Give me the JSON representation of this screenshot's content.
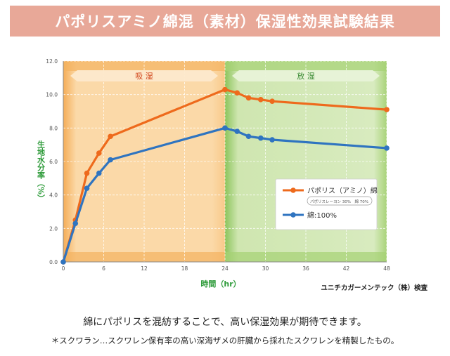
{
  "banner": {
    "title": "パポリスアミノ綿混（素材）保湿性効果試験結果"
  },
  "credit": "ユニチカガーメンテック（株）検査",
  "caption": "綿にパポリスを混紡することで、高い保湿効果が期待できます。",
  "footnote": "＊スクワラン…スクワレン保有率の高い深海ザメの肝臓から採れたスクワレンを精製したもの。",
  "colors": {
    "absorb_zone": "#f8c98a",
    "release_zone": "#a9d37a",
    "series_orange": "#ee6a1c",
    "series_blue": "#2f74c0",
    "axis_label_green": "#2e9b3a"
  },
  "chart_data": {
    "type": "line",
    "xlabel": "時間（hr）",
    "ylabel": "生地水分率（%）",
    "xlim": [
      0,
      48
    ],
    "ylim": [
      0,
      12
    ],
    "xticks": [
      0,
      6,
      12,
      18,
      24,
      30,
      36,
      42,
      48
    ],
    "yticks": [
      "0.0",
      "2.0",
      "4.0",
      "6.0",
      "8.0",
      "10.0",
      "12.0"
    ],
    "grid": true,
    "legend_placement": "right",
    "zones": [
      {
        "label": "吸 湿",
        "from": 0,
        "to": 24
      },
      {
        "label": "放 湿",
        "from": 24,
        "to": 48
      }
    ],
    "series": [
      {
        "name": "パポリス（アミノ）綿",
        "note": "パポリスレーヨン 30%　綿 70%",
        "x": [
          0,
          1.8,
          3.5,
          5.3,
          7,
          24,
          25.8,
          27.5,
          29.3,
          31,
          48
        ],
        "y": [
          0,
          2.5,
          5.3,
          6.5,
          7.5,
          10.3,
          10.1,
          9.8,
          9.7,
          9.6,
          9.1
        ]
      },
      {
        "name": "綿:100%",
        "x": [
          0,
          1.8,
          3.5,
          5.3,
          7,
          24,
          25.8,
          27.5,
          29.3,
          31,
          48
        ],
        "y": [
          0,
          2.3,
          4.4,
          5.3,
          6.1,
          8.0,
          7.8,
          7.5,
          7.4,
          7.3,
          6.8
        ]
      }
    ]
  }
}
